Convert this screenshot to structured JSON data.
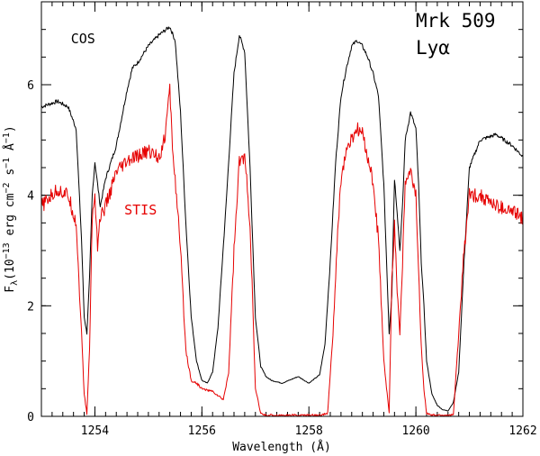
{
  "chart_data": {
    "type": "line",
    "title": "Mrk 509",
    "subtitle": "Lyα",
    "xlabel": "Wavelength (Å)",
    "ylabel_parts": [
      "F",
      "λ",
      "(10",
      "−13",
      " erg cm",
      "−2",
      " s",
      "−1",
      " Å",
      "−1",
      ")"
    ],
    "xlim": [
      1253,
      1262
    ],
    "ylim": [
      0,
      7.5
    ],
    "x_major_ticks": [
      1254,
      1256,
      1258,
      1260,
      1262
    ],
    "y_major_ticks": [
      0,
      2,
      4,
      6
    ],
    "x_minor_step": 0.2,
    "y_minor_step": 0.5,
    "series": [
      {
        "name": "COS",
        "color": "#000000",
        "label_pos": [
          1253.55,
          6.75
        ],
        "x": [
          1253.0,
          1253.3,
          1253.5,
          1253.65,
          1253.75,
          1253.8,
          1253.85,
          1253.9,
          1253.95,
          1254.0,
          1254.05,
          1254.1,
          1254.2,
          1254.4,
          1254.6,
          1254.7,
          1254.8,
          1255.0,
          1255.2,
          1255.4,
          1255.5,
          1255.6,
          1255.7,
          1255.8,
          1255.9,
          1256.0,
          1256.1,
          1256.2,
          1256.3,
          1256.45,
          1256.6,
          1256.7,
          1256.8,
          1256.9,
          1257.0,
          1257.1,
          1257.2,
          1257.3,
          1257.5,
          1257.7,
          1257.8,
          1258.0,
          1258.2,
          1258.3,
          1258.4,
          1258.5,
          1258.6,
          1258.7,
          1258.8,
          1258.9,
          1259.0,
          1259.1,
          1259.2,
          1259.3,
          1259.4,
          1259.5,
          1259.55,
          1259.6,
          1259.65,
          1259.7,
          1259.75,
          1259.8,
          1259.9,
          1260.0,
          1260.05,
          1260.1,
          1260.15,
          1260.2,
          1260.3,
          1260.4,
          1260.5,
          1260.6,
          1260.7,
          1260.8,
          1260.9,
          1261.0,
          1261.2,
          1261.5,
          1261.8,
          1262.0
        ],
        "y": [
          5.6,
          5.7,
          5.6,
          5.2,
          3.2,
          1.8,
          1.5,
          2.5,
          4.0,
          4.6,
          4.2,
          3.8,
          4.3,
          4.9,
          5.9,
          6.3,
          6.4,
          6.7,
          6.9,
          7.05,
          6.8,
          5.5,
          3.5,
          1.8,
          1.0,
          0.65,
          0.6,
          0.8,
          1.6,
          3.8,
          6.2,
          6.9,
          6.6,
          4.5,
          1.8,
          0.9,
          0.72,
          0.65,
          0.6,
          0.68,
          0.72,
          0.6,
          0.75,
          1.3,
          2.8,
          4.6,
          5.8,
          6.3,
          6.7,
          6.8,
          6.7,
          6.5,
          6.2,
          5.8,
          4.2,
          1.5,
          2.2,
          4.3,
          3.7,
          3.0,
          3.8,
          5.0,
          5.5,
          5.2,
          4.2,
          2.8,
          2.0,
          1.0,
          0.4,
          0.2,
          0.12,
          0.1,
          0.25,
          0.8,
          2.8,
          4.5,
          5.0,
          5.1,
          4.9,
          4.7
        ]
      },
      {
        "name": "STIS",
        "color": "#e60000",
        "label_pos": [
          1254.55,
          3.65
        ],
        "x": [
          1253.0,
          1253.3,
          1253.5,
          1253.65,
          1253.75,
          1253.8,
          1253.85,
          1253.9,
          1253.95,
          1254.0,
          1254.05,
          1254.1,
          1254.2,
          1254.4,
          1254.6,
          1254.8,
          1255.0,
          1255.2,
          1255.3,
          1255.4,
          1255.45,
          1255.5,
          1255.6,
          1255.7,
          1255.8,
          1255.9,
          1256.0,
          1256.2,
          1256.4,
          1256.5,
          1256.6,
          1256.7,
          1256.8,
          1256.9,
          1257.0,
          1257.1,
          1257.2,
          1257.4,
          1257.6,
          1257.8,
          1258.0,
          1258.2,
          1258.35,
          1258.45,
          1258.55,
          1258.6,
          1258.7,
          1258.8,
          1258.9,
          1259.0,
          1259.1,
          1259.2,
          1259.3,
          1259.4,
          1259.5,
          1259.55,
          1259.6,
          1259.65,
          1259.7,
          1259.75,
          1259.8,
          1259.9,
          1260.0,
          1260.05,
          1260.1,
          1260.15,
          1260.2,
          1260.3,
          1260.4,
          1260.5,
          1260.6,
          1260.7,
          1260.8,
          1260.9,
          1261.0,
          1261.2,
          1261.5,
          1261.8,
          1262.0
        ],
        "y": [
          3.8,
          4.1,
          4.0,
          3.5,
          1.5,
          0.4,
          0.05,
          1.2,
          3.6,
          4.0,
          3.1,
          3.6,
          3.8,
          4.4,
          4.6,
          4.7,
          4.8,
          4.7,
          5.0,
          5.9,
          4.9,
          4.3,
          3.0,
          1.2,
          0.65,
          0.6,
          0.5,
          0.45,
          0.3,
          0.8,
          3.0,
          4.6,
          4.7,
          3.5,
          0.5,
          0.05,
          0.02,
          0.02,
          0.02,
          0.02,
          0.02,
          0.02,
          0.05,
          1.5,
          3.5,
          4.3,
          4.8,
          5.0,
          5.2,
          5.1,
          4.7,
          4.2,
          3.2,
          1.0,
          0.05,
          2.5,
          3.5,
          2.3,
          1.5,
          2.8,
          4.2,
          4.4,
          4.0,
          2.6,
          1.3,
          0.5,
          0.05,
          0.02,
          0.02,
          0.02,
          0.02,
          0.02,
          1.5,
          3.0,
          4.0,
          4.0,
          3.8,
          3.7,
          3.6
        ]
      }
    ]
  }
}
